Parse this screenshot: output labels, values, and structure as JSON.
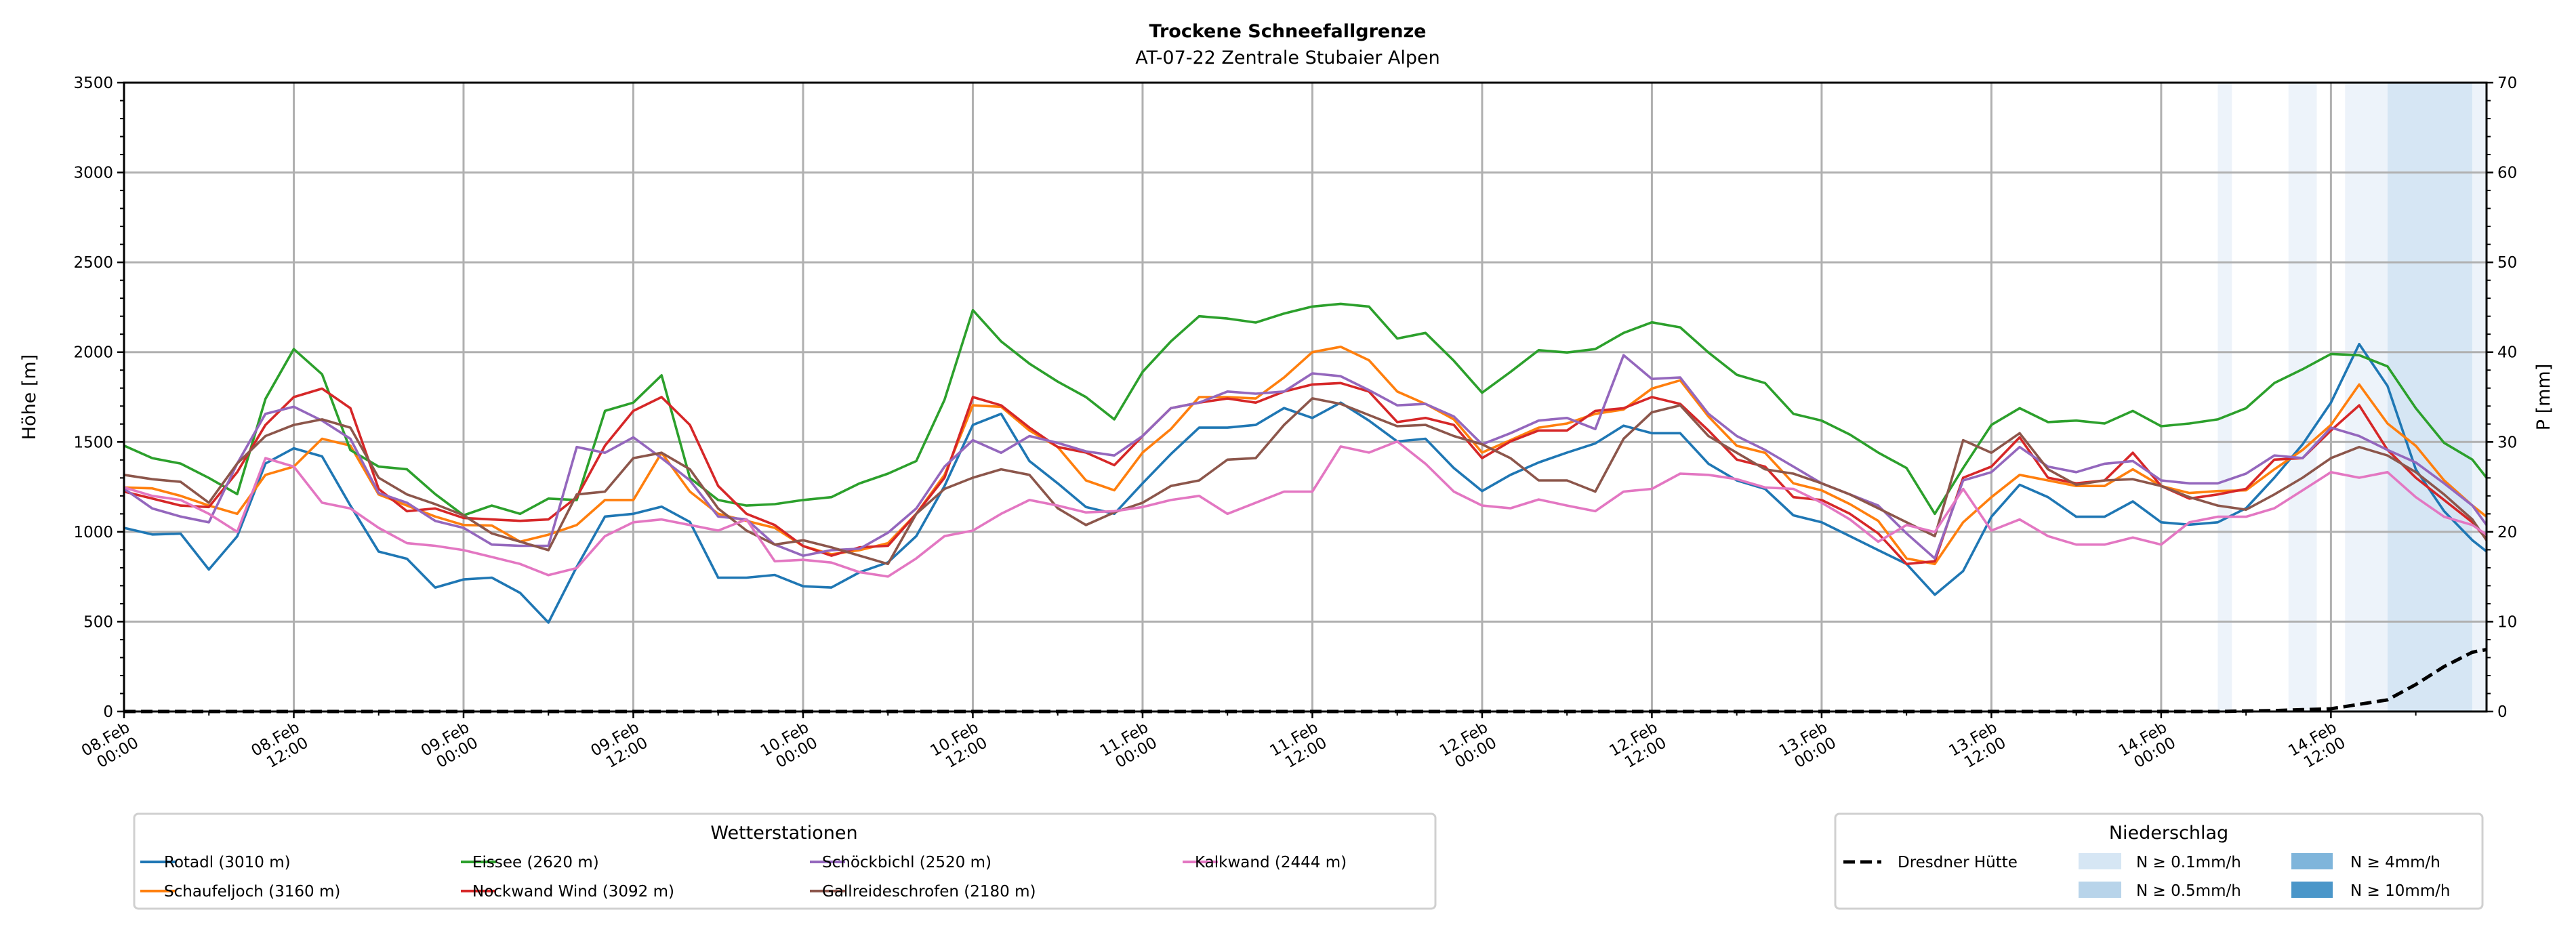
{
  "chart_data": {
    "type": "line",
    "title": "Trockene Schneefallgrenze",
    "subtitle": "AT-07-22 Zentrale Stubaier Alpen",
    "ylabel": "Höhe [m]",
    "ylabel_right": "P [mm]",
    "ylim": [
      0,
      3500
    ],
    "ylim_right": [
      0,
      70
    ],
    "yticks": [
      "0",
      "500",
      "1000",
      "1500",
      "2000",
      "2500",
      "3000",
      "3500"
    ],
    "yticks_right": [
      "0",
      "10",
      "20",
      "30",
      "40",
      "50",
      "60",
      "70"
    ],
    "x_unit": "hours since 08.Feb 00:00",
    "xlim": [
      0,
      167
    ],
    "xticks": [
      {
        "h": 0,
        "date": "08.Feb",
        "time": "00:00"
      },
      {
        "h": 12,
        "date": "08.Feb",
        "time": "12:00"
      },
      {
        "h": 24,
        "date": "09.Feb",
        "time": "00:00"
      },
      {
        "h": 36,
        "date": "09.Feb",
        "time": "12:00"
      },
      {
        "h": 48,
        "date": "10.Feb",
        "time": "00:00"
      },
      {
        "h": 60,
        "date": "10.Feb",
        "time": "12:00"
      },
      {
        "h": 72,
        "date": "11.Feb",
        "time": "00:00"
      },
      {
        "h": 84,
        "date": "11.Feb",
        "time": "12:00"
      },
      {
        "h": 96,
        "date": "12.Feb",
        "time": "00:00"
      },
      {
        "h": 108,
        "date": "12.Feb",
        "time": "12:00"
      },
      {
        "h": 120,
        "date": "13.Feb",
        "time": "00:00"
      },
      {
        "h": 132,
        "date": "13.Feb",
        "time": "12:00"
      },
      {
        "h": 144,
        "date": "14.Feb",
        "time": "00:00"
      },
      {
        "h": 156,
        "date": "14.Feb",
        "time": "12:00"
      }
    ],
    "grid": true,
    "x": [
      0,
      2,
      4,
      6,
      8,
      10,
      12,
      14,
      16,
      18,
      20,
      22,
      24,
      26,
      28,
      30,
      32,
      34,
      36,
      38,
      40,
      42,
      44,
      46,
      48,
      50,
      52,
      54,
      56,
      58,
      60,
      62,
      64,
      66,
      68,
      70,
      72,
      74,
      76,
      78,
      80,
      82,
      84,
      86,
      88,
      90,
      92,
      94,
      96,
      98,
      100,
      102,
      104,
      106,
      108,
      110,
      112,
      114,
      116,
      118,
      120,
      122,
      124,
      126,
      128,
      130,
      132,
      134,
      136,
      138,
      140,
      142,
      144,
      146,
      148,
      150,
      152,
      154,
      156,
      158,
      160,
      162,
      164,
      166,
      167
    ],
    "series": [
      {
        "name": "Rotadl (3010 m)",
        "color": "#1f77b4",
        "values": [
          1022,
          985,
          990,
          790,
          975,
          1380,
          1465,
          1420,
          1146,
          890,
          850,
          690,
          735,
          745,
          660,
          495,
          805,
          1085,
          1100,
          1140,
          1055,
          745,
          745,
          760,
          697,
          690,
          775,
          830,
          976,
          1255,
          1595,
          1657,
          1394,
          1270,
          1138,
          1100,
          1270,
          1433,
          1580,
          1580,
          1595,
          1689,
          1634,
          1719,
          1619,
          1503,
          1518,
          1355,
          1227,
          1317,
          1386,
          1441,
          1492,
          1591,
          1549,
          1549,
          1379,
          1286,
          1239,
          1092,
          1053,
          976,
          898,
          821,
          650,
          782,
          1084,
          1262,
          1193,
          1084,
          1084,
          1169,
          1053,
          1040,
          1053,
          1131,
          1301,
          1487,
          1719,
          2045,
          1812,
          1348,
          1115,
          953,
          891
        ]
      },
      {
        "name": "Schaufeljoch (3160 m)",
        "color": "#ff7f0e",
        "values": [
          1247,
          1242,
          1200,
          1146,
          1100,
          1317,
          1363,
          1518,
          1480,
          1208,
          1146,
          1085,
          1038,
          1035,
          945,
          984,
          1038,
          1177,
          1177,
          1440,
          1224,
          1100,
          1061,
          1022,
          921,
          875,
          898,
          937,
          1100,
          1317,
          1704,
          1696,
          1564,
          1472,
          1286,
          1231,
          1441,
          1572,
          1750,
          1750,
          1742,
          1859,
          2000,
          2030,
          1955,
          1781,
          1712,
          1626,
          1441,
          1510,
          1580,
          1603,
          1657,
          1681,
          1797,
          1843,
          1642,
          1479,
          1440,
          1270,
          1231,
          1154,
          1061,
          852,
          821,
          1053,
          1193,
          1317,
          1286,
          1255,
          1255,
          1348,
          1255,
          1216,
          1227,
          1231,
          1348,
          1456,
          1595,
          1820,
          1603,
          1479,
          1286,
          1146,
          1084
        ]
      },
      {
        "name": "Eissee (2620 m)",
        "color": "#2ca02c",
        "values": [
          1480,
          1410,
          1380,
          1300,
          1210,
          1740,
          2017,
          1877,
          1455,
          1363,
          1348,
          1210,
          1092,
          1146,
          1100,
          1185,
          1177,
          1673,
          1719,
          1871,
          1300,
          1177,
          1146,
          1154,
          1177,
          1193,
          1270,
          1324,
          1394,
          1735,
          2234,
          2060,
          1936,
          1836,
          1750,
          1626,
          1890,
          2060,
          2200,
          2187,
          2165,
          2215,
          2254,
          2269,
          2254,
          2076,
          2107,
          1952,
          1774,
          1890,
          2011,
          1998,
          2017,
          2107,
          2166,
          2138,
          1998,
          1874,
          1828,
          1657,
          1619,
          1541,
          1441,
          1355,
          1100,
          1355,
          1595,
          1688,
          1611,
          1619,
          1603,
          1673,
          1588,
          1603,
          1626,
          1688,
          1828,
          1905,
          1990,
          1983,
          1921,
          1688,
          1495,
          1402,
          1301
        ]
      },
      {
        "name": "Nockwand Wind (3092 m)",
        "color": "#d62728",
        "values": [
          1224,
          1185,
          1146,
          1138,
          1332,
          1595,
          1750,
          1797,
          1688,
          1239,
          1115,
          1130,
          1077,
          1069,
          1061,
          1069,
          1193,
          1480,
          1673,
          1750,
          1595,
          1255,
          1100,
          1038,
          921,
          867,
          914,
          922,
          1100,
          1301,
          1750,
          1704,
          1580,
          1472,
          1441,
          1371,
          1533,
          1688,
          1719,
          1742,
          1719,
          1781,
          1820,
          1828,
          1781,
          1611,
          1634,
          1595,
          1410,
          1503,
          1564,
          1564,
          1673,
          1688,
          1750,
          1712,
          1564,
          1402,
          1363,
          1193,
          1177,
          1100,
          991,
          821,
          836,
          1301,
          1363,
          1526,
          1301,
          1270,
          1286,
          1440,
          1255,
          1185,
          1208,
          1239,
          1402,
          1410,
          1564,
          1704,
          1456,
          1301,
          1177,
          1053,
          960
        ]
      },
      {
        "name": "Schöckbichl (2520 m)",
        "color": "#9467bd",
        "values": [
          1240,
          1130,
          1085,
          1053,
          1380,
          1657,
          1696,
          1619,
          1518,
          1216,
          1162,
          1061,
          1022,
          929,
          922,
          922,
          1472,
          1440,
          1526,
          1410,
          1286,
          1085,
          1069,
          929,
          867,
          898,
          906,
          995,
          1130,
          1363,
          1510,
          1440,
          1533,
          1495,
          1448,
          1425,
          1533,
          1688,
          1719,
          1781,
          1769,
          1781,
          1882,
          1866,
          1789,
          1704,
          1712,
          1642,
          1487,
          1549,
          1619,
          1634,
          1572,
          1983,
          1851,
          1859,
          1657,
          1533,
          1456,
          1363,
          1270,
          1208,
          1146,
          991,
          852,
          1286,
          1332,
          1472,
          1363,
          1332,
          1379,
          1394,
          1286,
          1270,
          1270,
          1324,
          1425,
          1410,
          1580,
          1533,
          1456,
          1386,
          1270,
          1146,
          1038
        ]
      },
      {
        "name": "Gallreideschrofen (2180 m)",
        "color": "#8c564b",
        "values": [
          1317,
          1293,
          1278,
          1162,
          1380,
          1533,
          1595,
          1626,
          1580,
          1301,
          1208,
          1154,
          1092,
          991,
          945,
          898,
          1208,
          1224,
          1410,
          1440,
          1348,
          1130,
          1007,
          929,
          953,
          914,
          867,
          821,
          1100,
          1239,
          1301,
          1348,
          1317,
          1131,
          1038,
          1108,
          1162,
          1255,
          1286,
          1402,
          1410,
          1595,
          1743,
          1712,
          1650,
          1588,
          1595,
          1533,
          1487,
          1410,
          1286,
          1286,
          1224,
          1518,
          1665,
          1704,
          1533,
          1440,
          1348,
          1324,
          1270,
          1208,
          1131,
          1053,
          976,
          1510,
          1440,
          1549,
          1348,
          1262,
          1286,
          1293,
          1255,
          1193,
          1146,
          1123,
          1208,
          1301,
          1410,
          1472,
          1425,
          1332,
          1208,
          1069,
          953
        ]
      },
      {
        "name": "Kalkwand (2444 m)",
        "color": "#e377c2",
        "values": [
          1247,
          1200,
          1177,
          1100,
          1000,
          1410,
          1363,
          1162,
          1130,
          1022,
          937,
          922,
          898,
          860,
          821,
          759,
          798,
          976,
          1053,
          1069,
          1038,
          1007,
          1069,
          836,
          844,
          829,
          775,
          751,
          852,
          976,
          1007,
          1100,
          1177,
          1146,
          1108,
          1115,
          1138,
          1177,
          1200,
          1100,
          1162,
          1224,
          1224,
          1475,
          1441,
          1503,
          1379,
          1224,
          1146,
          1131,
          1180,
          1146,
          1115,
          1224,
          1239,
          1324,
          1317,
          1293,
          1247,
          1239,
          1162,
          1069,
          945,
          1038,
          999,
          1239,
          1007,
          1069,
          976,
          929,
          929,
          968,
          929,
          1053,
          1084,
          1084,
          1131,
          1231,
          1332,
          1301,
          1332,
          1193,
          1084,
          1038,
          984
        ]
      }
    ],
    "precip_series": {
      "name": "Dresdner Hütte",
      "color": "#000000",
      "x": [
        0,
        148,
        150,
        152,
        154,
        156,
        158,
        160,
        162,
        164,
        166,
        167
      ],
      "values": [
        0,
        0,
        0.05,
        0.1,
        0.2,
        0.3,
        0.8,
        1.3,
        3.0,
        5.0,
        6.6,
        6.9
      ]
    },
    "precip_bands": [
      {
        "from": 148,
        "to": 149,
        "level": 0.1
      },
      {
        "from": 153,
        "to": 155,
        "level": 0.1
      },
      {
        "from": 157,
        "to": 160,
        "level": 0.1
      },
      {
        "from": 160,
        "to": 166,
        "level": 0.5
      },
      {
        "from": 166,
        "to": 167,
        "level": 0.1
      }
    ],
    "legend_stations": {
      "title": "Wetterstationen",
      "placement": "bottom-left"
    },
    "legend_precip": {
      "title": "Niederschlag",
      "placement": "bottom-right",
      "line_label": "Dresdner Hütte",
      "levels": [
        {
          "label": "N ≥ 0.1mm/h",
          "color": "#d6e6f4"
        },
        {
          "label": "N ≥ 0.5mm/h",
          "color": "#b8d4ea"
        },
        {
          "label": "N ≥ 4mm/h",
          "color": "#7fb5db"
        },
        {
          "label": "N ≥ 10mm/h",
          "color": "#4a96c9"
        }
      ]
    }
  }
}
